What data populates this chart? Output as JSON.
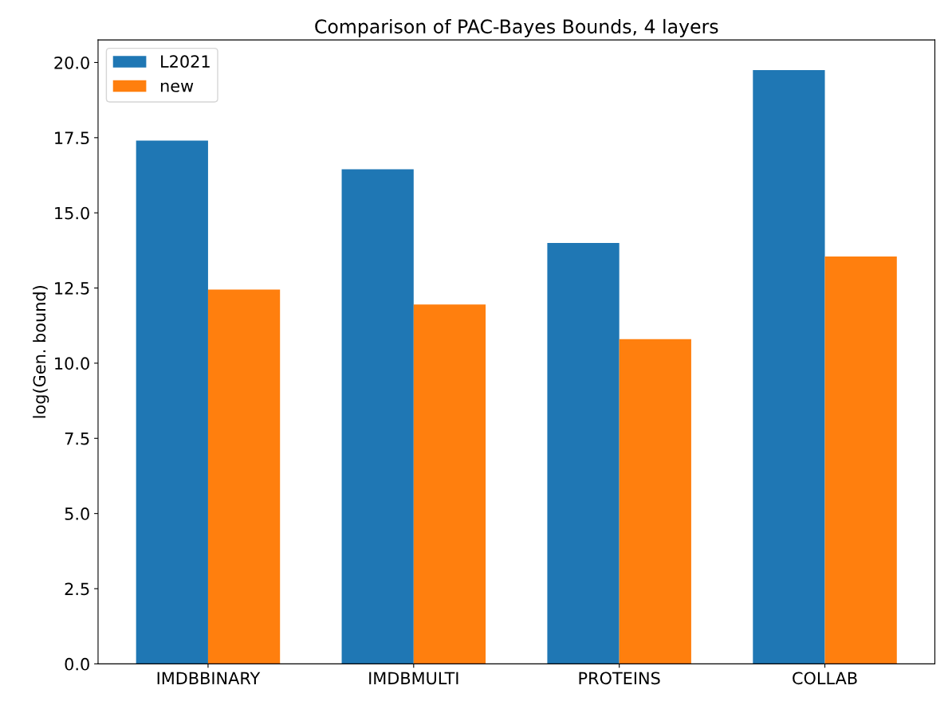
{
  "chart_data": {
    "type": "bar",
    "title": "Comparison of PAC-Bayes Bounds, 4 layers",
    "ylabel": "log(Gen. bound)",
    "categories": [
      "IMDBBINARY",
      "IMDBMULTI",
      "PROTEINS",
      "COLLAB"
    ],
    "series": [
      {
        "name": "L2021",
        "color": "#1f77b4",
        "values": [
          17.4,
          16.45,
          14.0,
          19.75
        ]
      },
      {
        "name": "new",
        "color": "#ff7f0e",
        "values": [
          12.45,
          11.95,
          10.8,
          13.55
        ]
      }
    ],
    "ylim": [
      0,
      20.75
    ],
    "yticks": [
      {
        "value": 0,
        "label": "0.0"
      },
      {
        "value": 2.5,
        "label": "2.5"
      },
      {
        "value": 5,
        "label": "5.0"
      },
      {
        "value": 7.5,
        "label": "7.5"
      },
      {
        "value": 10,
        "label": "10.0"
      },
      {
        "value": 12.5,
        "label": "12.5"
      },
      {
        "value": 15,
        "label": "15.0"
      },
      {
        "value": 17.5,
        "label": "17.5"
      },
      {
        "value": 20,
        "label": "20.0"
      }
    ],
    "grid": false,
    "legend": "top left"
  }
}
